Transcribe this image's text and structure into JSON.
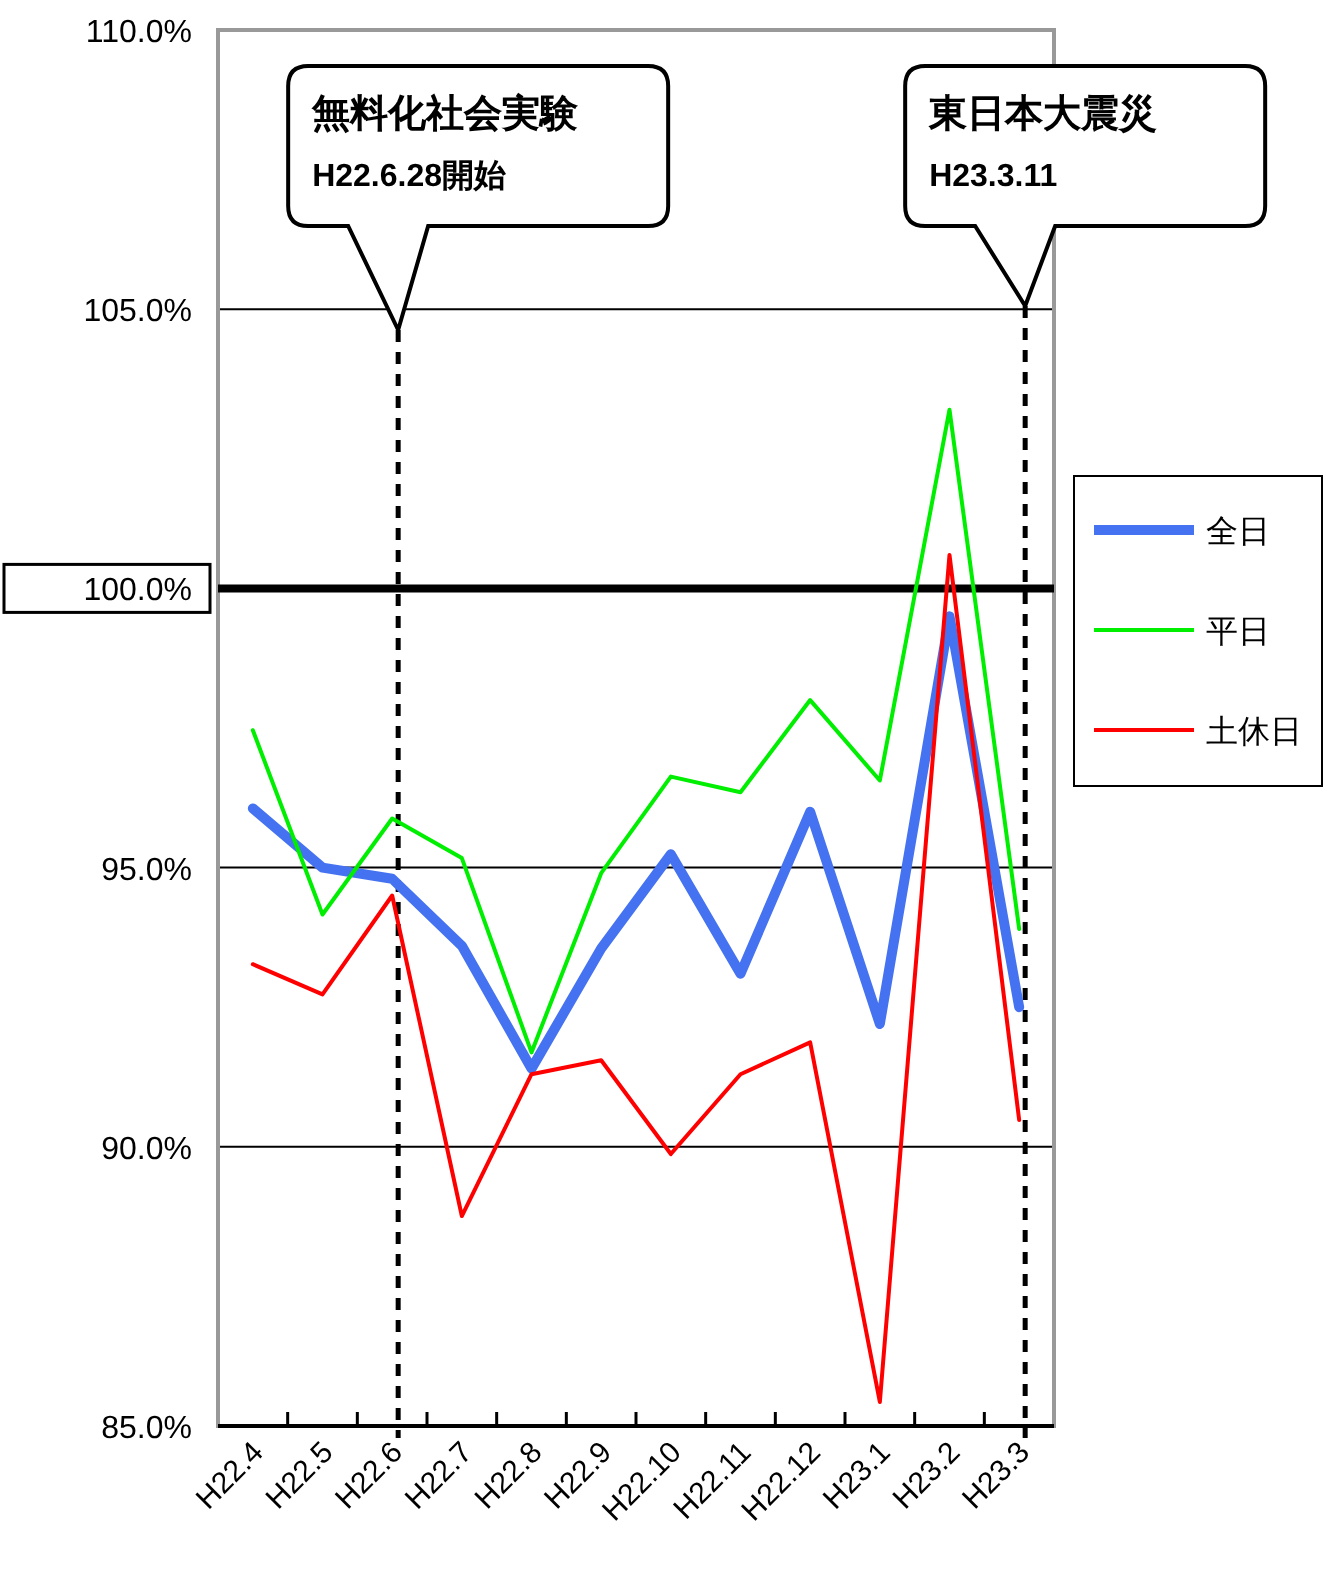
{
  "chart_data": {
    "type": "line",
    "categories": [
      "H22.4",
      "H22.5",
      "H22.6",
      "H22.7",
      "H22.8",
      "H22.9",
      "H22.10",
      "H22.11",
      "H22.12",
      "H23.1",
      "H23.2",
      "H23.3"
    ],
    "series": [
      {
        "name": "全日",
        "color": "#4472f0",
        "values": [
          96.06,
          95.0,
          94.8,
          93.6,
          91.4,
          93.55,
          95.24,
          93.1,
          96.0,
          92.2,
          99.5,
          92.5
        ]
      },
      {
        "name": "平日",
        "color": "#00ee00",
        "values": [
          97.46,
          94.16,
          95.88,
          95.17,
          91.69,
          94.9,
          96.63,
          96.35,
          98.0,
          96.56,
          103.2,
          93.9
        ]
      },
      {
        "name": "土休日",
        "color": "#ff0000",
        "values": [
          93.27,
          92.73,
          94.5,
          88.76,
          91.3,
          91.55,
          89.87,
          91.3,
          91.87,
          85.43,
          100.6,
          90.48
        ]
      }
    ],
    "ylim": [
      85,
      110
    ],
    "yticks": [
      {
        "value": 85,
        "label": "85.0%"
      },
      {
        "value": 90,
        "label": "90.0%"
      },
      {
        "value": 95,
        "label": "95.0%"
      },
      {
        "value": 100,
        "label": "100.0%"
      },
      {
        "value": 105,
        "label": "105.0%"
      },
      {
        "value": 110,
        "label": "110.0%"
      }
    ],
    "grid": "y",
    "legend": "right",
    "marker": "none",
    "line_style": "solid",
    "ref_lines": [
      {
        "axis": "y",
        "value": 100,
        "color": "#000000",
        "line_style": "solid"
      },
      {
        "axis": "x",
        "value": "H22.6",
        "color": "#000000",
        "line_style": "dashed"
      },
      {
        "axis": "x",
        "value": "H23.3",
        "color": "#000000",
        "line_style": "dashed"
      }
    ],
    "annotations": [
      "無料化社会実験\nH22.6.28開始",
      "東日本大震災\nH23.3.11"
    ]
  }
}
